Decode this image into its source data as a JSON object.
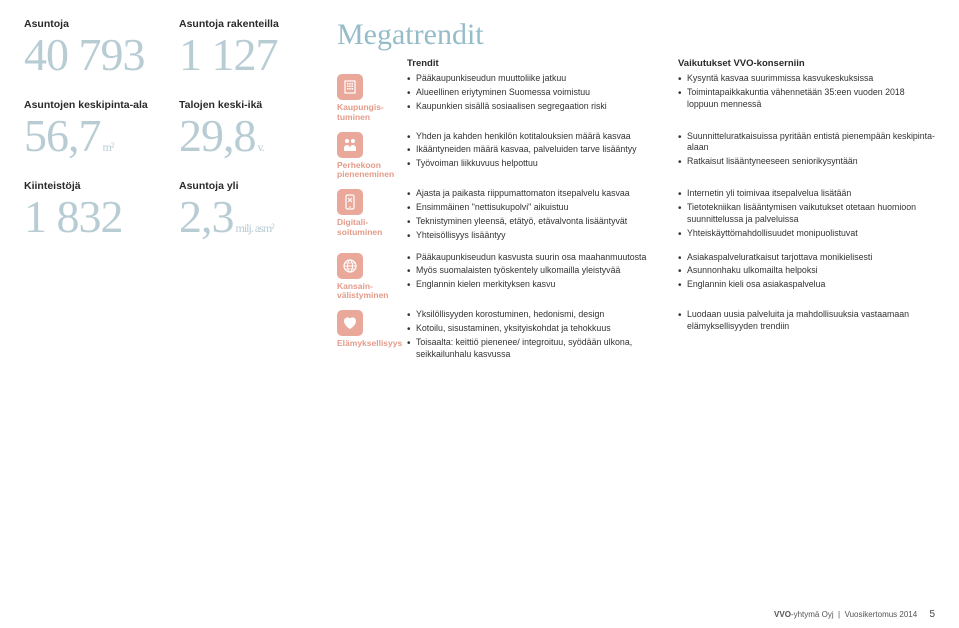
{
  "left": [
    {
      "label": "Asuntoja",
      "value": "40 793",
      "unit": ""
    },
    {
      "label": "Asuntojen keskipinta-ala",
      "value": "56,7",
      "unit": " m²"
    },
    {
      "label": "Kiinteistöjä",
      "value": "1 832",
      "unit": ""
    }
  ],
  "mid": [
    {
      "label": "Asuntoja rakenteilla",
      "value": "1 127",
      "unit": ""
    },
    {
      "label": "Talojen keski-ikä",
      "value": "29,8",
      "unit": " v."
    },
    {
      "label": "Asuntoja yli",
      "value": "2,3",
      "unit": " milj. asm²"
    }
  ],
  "mega": {
    "title": "Megatrendit",
    "head_trend": "Trendit",
    "head_impact": "Vaikutukset VVO-konserniin",
    "rows": [
      {
        "icon": "building",
        "label": "Kaupungis­tuminen",
        "trends": [
          "Pääkaupunkiseudun muuttoliike jatkuu",
          "Alueellinen eriytyminen Suomessa voimistuu",
          "Kaupunkien sisällä sosiaalisen segregaation riski"
        ],
        "impacts": [
          "Kysyntä kasvaa suurimmissa kasvukeskuksissa",
          "Toimintapaikkakuntia vähennetään 35:een vuoden 2018 loppuun mennessä"
        ]
      },
      {
        "icon": "family",
        "label": "Perhekoon pieneneminen",
        "trends": [
          "Yhden ja kahden henkilön kotitalouksien määrä kasvaa",
          "Ikääntyneiden määrä kasvaa, palveluiden tarve lisääntyy",
          "Työvoiman liikkuvuus helpottuu"
        ],
        "impacts": [
          "Suunnitteluratkaisuissa pyritään entistä pienempään keskipinta-alaan",
          "Ratkaisut lisääntyneeseen seniorikysyntään"
        ]
      },
      {
        "icon": "phone",
        "label": "Digitali­soituminen",
        "trends": [
          "Ajasta ja paikasta riippumattomaton itsepalvelu kasvaa",
          "Ensimmäinen \"nettisukupolvi\" aikuistuu",
          "Teknistyminen yleensä, etätyö, etävalvonta lisääntyvät",
          "Yhteisöllisyys lisääntyy"
        ],
        "impacts": [
          "Internetin yli toimivaa itsepalvelua lisätään",
          "Tietotekniikan lisääntymisen vaikutukset otetaan huomioon suunnittelussa ja palveluissa",
          "Yhteiskäyttömahdollisuudet monipuolistuvat"
        ]
      },
      {
        "icon": "globe",
        "label": "Kansain­välistyminen",
        "trends": [
          "Pääkaupunkiseudun kasvusta suurin osa maahanmuutosta",
          "Myös suomalaisten työskentely ulkomailla yleistyvää",
          "Englannin kielen merkityksen kasvu"
        ],
        "impacts": [
          "Asiakaspalveluratkaisut tarjottava monikielisesti",
          "Asunnonhaku ulkomailta helpoksi",
          "Englannin kieli osa asiakas­palvelua"
        ]
      },
      {
        "icon": "heart",
        "label": "Elämyksellisyys",
        "trends": [
          "Yksilöllisyyden korostuminen, hedonismi, design",
          "Kotoilu, sisustaminen, yksityiskohdat ja tehokkuus",
          "Toisaalta: keittiö pienenee/ integroituu, syödään ulkona, seikkailunhalu kasvussa"
        ],
        "impacts": [
          "Luodaan uusia palveluita ja mahdollisuuksia vastaamaan elämyksellisyyden trendiin"
        ]
      }
    ]
  },
  "footer": {
    "company": "VVO",
    "suffix": "-yhtymä Oyj",
    "doc": "Vuosikertomus 2014",
    "page": "5"
  },
  "colors": {
    "bignum": "#b8ccd4",
    "accent": "#e9a89a",
    "accent_text": "#e39b8a"
  }
}
